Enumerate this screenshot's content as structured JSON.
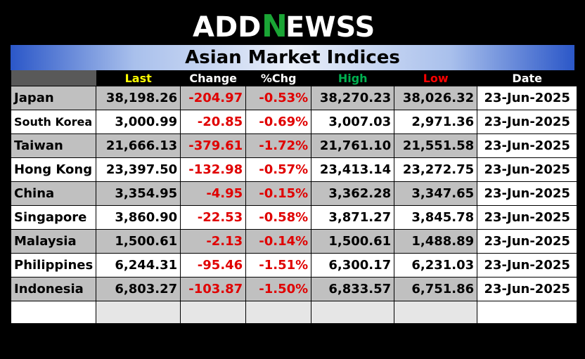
{
  "logo": {
    "part1": "ADD",
    "part2": "N",
    "part3": "EWSS",
    "accent": "#1aa535"
  },
  "title": "Asian Market Indices",
  "columns": {
    "last": "Last",
    "change": "Change",
    "pct": "%Chg",
    "high": "High",
    "low": "Low",
    "date": "Date"
  },
  "colors": {
    "negative": "#e00000",
    "last": "#ffff00",
    "high": "#00b050",
    "low": "#ff0000"
  },
  "rows": [
    {
      "name": "Japan",
      "last": "38,198.26",
      "change": "-204.97",
      "pct": "-0.53%",
      "high": "38,270.23",
      "low": "38,026.32",
      "date": "23-Jun-2025"
    },
    {
      "name": "South Korea",
      "last": "3,000.99",
      "change": "-20.85",
      "pct": "-0.69%",
      "high": "3,007.03",
      "low": "2,971.36",
      "date": "23-Jun-2025"
    },
    {
      "name": "Taiwan",
      "last": "21,666.13",
      "change": "-379.61",
      "pct": "-1.72%",
      "high": "21,761.10",
      "low": "21,551.58",
      "date": "23-Jun-2025"
    },
    {
      "name": "Hong Kong",
      "last": "23,397.50",
      "change": "-132.98",
      "pct": "-0.57%",
      "high": "23,413.14",
      "low": "23,272.75",
      "date": "23-Jun-2025"
    },
    {
      "name": "China",
      "last": "3,354.95",
      "change": "-4.95",
      "pct": "-0.15%",
      "high": "3,362.28",
      "low": "3,347.65",
      "date": "23-Jun-2025"
    },
    {
      "name": "Singapore",
      "last": "3,860.90",
      "change": "-22.53",
      "pct": "-0.58%",
      "high": "3,871.27",
      "low": "3,845.78",
      "date": "23-Jun-2025"
    },
    {
      "name": "Malaysia",
      "last": "1,500.61",
      "change": "-2.13",
      "pct": "-0.14%",
      "high": "1,500.61",
      "low": "1,488.89",
      "date": "23-Jun-2025"
    },
    {
      "name": "Philippines",
      "last": "6,244.31",
      "change": "-95.46",
      "pct": "-1.51%",
      "high": "6,300.17",
      "low": "6,231.03",
      "date": "23-Jun-2025"
    },
    {
      "name": "Indonesia",
      "last": "6,803.27",
      "change": "-103.87",
      "pct": "-1.50%",
      "high": "6,833.57",
      "low": "6,751.86",
      "date": "23-Jun-2025"
    }
  ]
}
